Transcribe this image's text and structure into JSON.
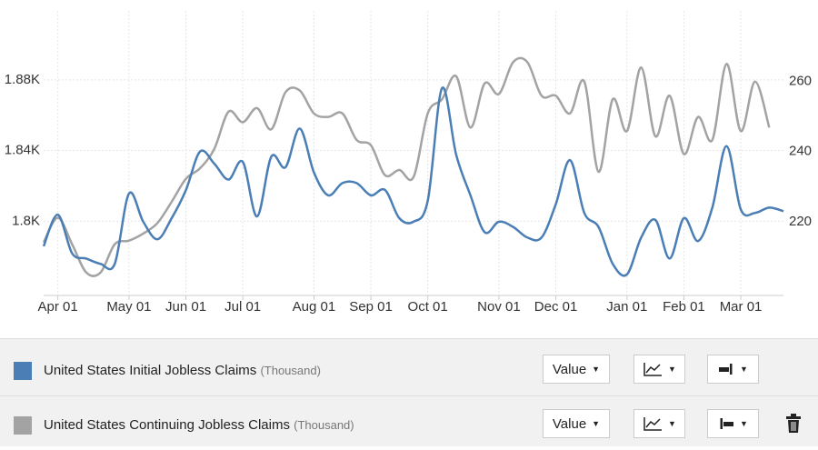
{
  "chart_data": {
    "type": "line",
    "categories": [
      null,
      "Apr 01",
      null,
      null,
      null,
      null,
      "May 01",
      null,
      null,
      null,
      "Jun 01",
      null,
      null,
      null,
      "Jul 01",
      null,
      null,
      null,
      null,
      "Aug 01",
      null,
      null,
      null,
      "Sep 01",
      null,
      null,
      null,
      "Oct 01",
      null,
      null,
      null,
      null,
      "Nov 01",
      null,
      null,
      null,
      "Dec 01",
      null,
      null,
      null,
      null,
      "Jan 01",
      null,
      null,
      null,
      "Feb 01",
      null,
      null,
      null,
      "Mar 01",
      null,
      null,
      null
    ],
    "series": [
      {
        "name": "United States Initial Jobless Claims",
        "unit": "(Thousand)",
        "color": "#4a7eb5",
        "axis": "y2",
        "values": [
          213,
          222,
          211,
          209.5,
          208,
          208,
          228,
          220,
          215,
          221,
          229,
          240,
          236.5,
          232,
          237,
          221.5,
          238.5,
          235.5,
          246.5,
          234,
          227.5,
          231,
          231,
          227.5,
          229,
          221,
          220,
          226,
          258,
          239,
          227.5,
          217,
          220,
          218.5,
          215.5,
          215.5,
          225,
          237.5,
          222.5,
          218.5,
          208,
          205,
          215.5,
          220.5,
          209.5,
          221,
          214.5,
          224,
          241.5,
          223.5,
          222.5,
          224,
          223
        ]
      },
      {
        "name": "United States Continuing Jobless Claims",
        "unit": "(Thousand)",
        "color": "#a3a3a3",
        "values": [
          1788,
          1802,
          1787,
          1771,
          1771,
          1787,
          1789,
          1793,
          1799,
          1811,
          1824,
          1830,
          1841,
          1862,
          1856,
          1864,
          1852,
          1873,
          1874,
          1861,
          1859,
          1861,
          1846,
          1843,
          1826,
          1829,
          1825,
          1861,
          1869,
          1882,
          1853,
          1878,
          1872,
          1890,
          1890,
          1871,
          1871,
          1861,
          1879,
          1828,
          1869,
          1851,
          1887,
          1848,
          1871,
          1838,
          1859,
          1846,
          1889,
          1851,
          1879,
          1853,
          null
        ]
      }
    ],
    "ylim": [
      1758,
      1919
    ],
    "yticks": [
      {
        "value": 1800,
        "label": "1.8K"
      },
      {
        "value": 1840,
        "label": "1.84K"
      },
      {
        "value": 1880,
        "label": "1.88K"
      }
    ],
    "y2lim": [
      199,
      280
    ],
    "y2ticks": [
      220,
      240,
      260
    ],
    "grid": true
  },
  "controls": {
    "value_button": "Value"
  }
}
